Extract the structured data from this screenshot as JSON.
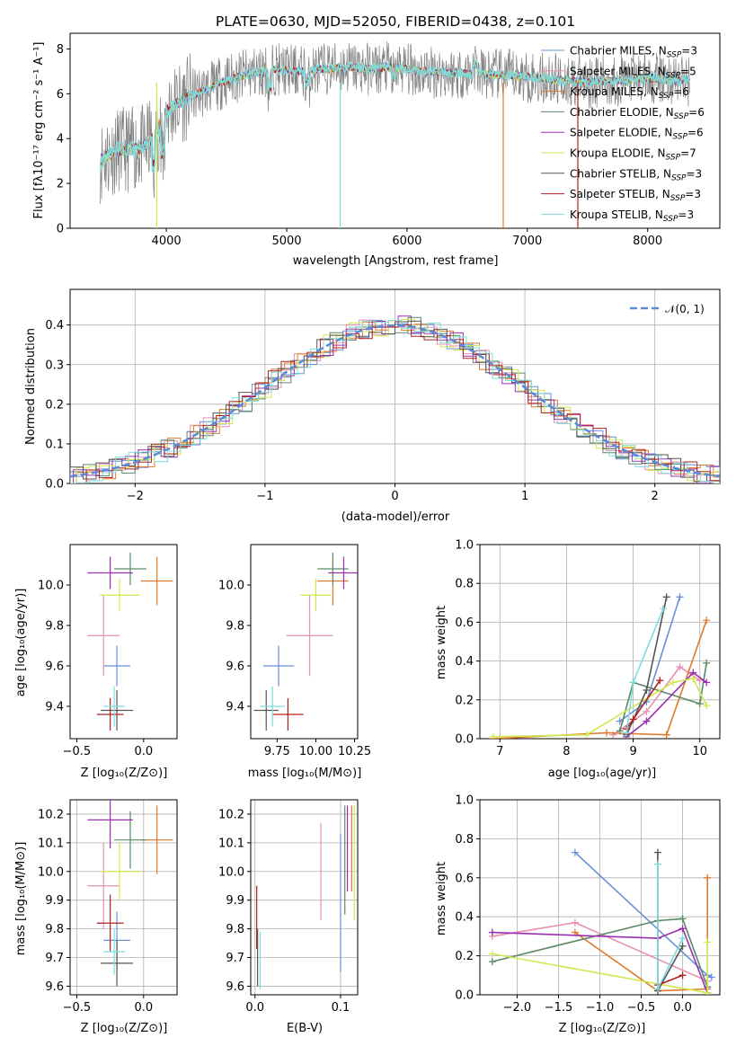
{
  "colors": {
    "chabrier_miles": "#6a8fd8",
    "salpeter_miles": "#e890b0",
    "kroupa_miles": "#e07a2a",
    "chabrier_elodie": "#5a8a68",
    "salpeter_elodie": "#9a30b0",
    "kroupa_elodie": "#d0e850",
    "chabrier_stelib": "#555555",
    "salpeter_stelib": "#b02020",
    "kroupa_stelib": "#80dcdc",
    "gaussian": "#5a8ad8"
  },
  "chart_data": [
    {
      "type": "line",
      "title": "PLATE=0630, MJD=52050, FIBERID=0438, z=0.101",
      "xlabel": "wavelength [Angstrom, rest frame]",
      "ylabel": "Flux [fλ10⁻¹⁷ erg cm⁻² s⁻¹ A⁻¹]",
      "xlim": [
        3200,
        8600
      ],
      "ylim": [
        0,
        8.7
      ],
      "xticks": [
        "4000",
        "5000",
        "6000",
        "7000",
        "8000"
      ],
      "yticks": [
        "0",
        "2",
        "4",
        "6",
        "8"
      ],
      "legend_position": "upper-right",
      "series": [
        {
          "name": "Chabrier MILES, N",
          "sub": "SSP",
          "suffix": "=3",
          "color_key": "chabrier_miles"
        },
        {
          "name": "Salpeter MILES, N",
          "sub": "SSP",
          "suffix": "=5",
          "color_key": "salpeter_miles"
        },
        {
          "name": "Kroupa MILES, N",
          "sub": "SSP",
          "suffix": "=6",
          "color_key": "kroupa_miles"
        },
        {
          "name": "Chabrier ELODIE, N",
          "sub": "SSP",
          "suffix": "=6",
          "color_key": "chabrier_elodie"
        },
        {
          "name": "Salpeter ELODIE, N",
          "sub": "SSP",
          "suffix": "=6",
          "color_key": "salpeter_elodie"
        },
        {
          "name": "Kroupa ELODIE, N",
          "sub": "SSP",
          "suffix": "=7",
          "color_key": "kroupa_elodie"
        },
        {
          "name": "Chabrier STELIB, N",
          "sub": "SSP",
          "suffix": "=3",
          "color_key": "chabrier_stelib"
        },
        {
          "name": "Salpeter STELIB, N",
          "sub": "SSP",
          "suffix": "=3",
          "color_key": "salpeter_stelib"
        },
        {
          "name": "Kroupa STELIB, N",
          "sub": "SSP",
          "suffix": "=3",
          "color_key": "kroupa_stelib"
        }
      ],
      "continuum": [
        [
          3450,
          3.0
        ],
        [
          3500,
          3.2
        ],
        [
          3600,
          3.5
        ],
        [
          3700,
          3.5
        ],
        [
          3800,
          3.6
        ],
        [
          3900,
          4.1
        ],
        [
          4000,
          5.2
        ],
        [
          4100,
          5.6
        ],
        [
          4200,
          5.9
        ],
        [
          4300,
          6.1
        ],
        [
          4500,
          6.6
        ],
        [
          4700,
          6.9
        ],
        [
          4900,
          7.1
        ],
        [
          5100,
          7.0
        ],
        [
          5300,
          7.1
        ],
        [
          5500,
          7.2
        ],
        [
          5700,
          7.1
        ],
        [
          5900,
          7.2
        ],
        [
          6100,
          7.0
        ],
        [
          6300,
          6.95
        ],
        [
          6500,
          6.9
        ],
        [
          6700,
          6.85
        ],
        [
          6900,
          6.8
        ],
        [
          7100,
          6.7
        ],
        [
          7300,
          6.6
        ],
        [
          7500,
          6.55
        ],
        [
          7800,
          6.6
        ],
        [
          8000,
          6.7
        ],
        [
          8300,
          6.6
        ]
      ]
    },
    {
      "type": "histogram",
      "xlabel": "(data-model)/error",
      "ylabel": "Normed distribution",
      "xlim": [
        -2.5,
        2.5
      ],
      "ylim": [
        0,
        0.49
      ],
      "xticks": [
        "−2",
        "−1",
        "0",
        "1",
        "2"
      ],
      "yticks": [
        "0.0",
        "0.1",
        "0.2",
        "0.3",
        "0.4"
      ],
      "grid": true,
      "legend_position": "upper-right",
      "gaussian_label": "𝒩(0, 1)",
      "bin_width": 0.1
    },
    {
      "type": "scatter",
      "xlabel": "Z [log₁₀(Z/Z⊙)]",
      "ylabel": "age  [log₁₀(age/yr)]",
      "xlim": [
        -0.55,
        0.25
      ],
      "ylim": [
        9.24,
        10.2
      ],
      "xticks": [
        "−0.5",
        "0.0"
      ],
      "yticks": [
        "9.4",
        "9.6",
        "9.8",
        "10.0"
      ],
      "points": [
        {
          "c": "chabrier_miles",
          "x": -0.2,
          "y": 9.6,
          "ex": 0.1,
          "ey": 0.1
        },
        {
          "c": "salpeter_miles",
          "x": -0.3,
          "y": 9.75,
          "ex": 0.12,
          "ey": 0.2
        },
        {
          "c": "kroupa_miles",
          "x": 0.1,
          "y": 10.02,
          "ex": 0.12,
          "ey": 0.12
        },
        {
          "c": "chabrier_elodie",
          "x": -0.1,
          "y": 10.08,
          "ex": 0.12,
          "ey": 0.08
        },
        {
          "c": "salpeter_elodie",
          "x": -0.25,
          "y": 10.06,
          "ex": 0.17,
          "ey": 0.08
        },
        {
          "c": "kroupa_elodie",
          "x": -0.18,
          "y": 9.95,
          "ex": 0.15,
          "ey": 0.08
        },
        {
          "c": "chabrier_stelib",
          "x": -0.2,
          "y": 9.38,
          "ex": 0.12,
          "ey": 0.1
        },
        {
          "c": "salpeter_stelib",
          "x": -0.25,
          "y": 9.36,
          "ex": 0.1,
          "ey": 0.08
        },
        {
          "c": "kroupa_stelib",
          "x": -0.22,
          "y": 9.4,
          "ex": 0.08,
          "ey": 0.1
        }
      ]
    },
    {
      "type": "scatter",
      "xlabel": "mass [log₁₀(M/M⊙)]",
      "xlim": [
        9.58,
        10.27
      ],
      "ylim": [
        9.24,
        10.2
      ],
      "xticks": [
        "9.75",
        "10.00",
        "10.25"
      ],
      "yticks": [
        "9.4",
        "9.6",
        "9.8",
        "10.0"
      ],
      "points": [
        {
          "c": "chabrier_miles",
          "x": 9.76,
          "y": 9.6,
          "ex": 0.1,
          "ey": 0.1
        },
        {
          "c": "salpeter_miles",
          "x": 9.96,
          "y": 9.75,
          "ex": 0.15,
          "ey": 0.2
        },
        {
          "c": "kroupa_miles",
          "x": 10.11,
          "y": 10.02,
          "ex": 0.1,
          "ey": 0.12
        },
        {
          "c": "chabrier_elodie",
          "x": 10.11,
          "y": 10.08,
          "ex": 0.1,
          "ey": 0.08
        },
        {
          "c": "salpeter_elodie",
          "x": 10.18,
          "y": 10.06,
          "ex": 0.1,
          "ey": 0.08
        },
        {
          "c": "kroupa_elodie",
          "x": 10.0,
          "y": 9.95,
          "ex": 0.1,
          "ey": 0.08
        },
        {
          "c": "chabrier_stelib",
          "x": 9.68,
          "y": 9.38,
          "ex": 0.08,
          "ey": 0.1
        },
        {
          "c": "salpeter_stelib",
          "x": 9.82,
          "y": 9.36,
          "ex": 0.1,
          "ey": 0.08
        },
        {
          "c": "kroupa_stelib",
          "x": 9.72,
          "y": 9.4,
          "ex": 0.08,
          "ey": 0.1
        }
      ]
    },
    {
      "type": "line",
      "xlabel": "age  [log₁₀(age/yr)]",
      "ylabel": "mass weight",
      "xlim": [
        6.7,
        10.3
      ],
      "ylim": [
        0,
        1.0
      ],
      "xticks": [
        "7",
        "8",
        "9",
        "10"
      ],
      "yticks": [
        "0.0",
        "0.2",
        "0.4",
        "0.6",
        "0.8",
        "1.0"
      ],
      "grid": true,
      "series": [
        {
          "c": "chabrier_miles",
          "x": [
            8.8,
            9.2,
            9.7
          ],
          "y": [
            0.09,
            0.19,
            0.73
          ]
        },
        {
          "c": "salpeter_miles",
          "x": [
            8.7,
            9.2,
            9.7,
            10.0
          ],
          "y": [
            0.02,
            0.14,
            0.37,
            0.3
          ]
        },
        {
          "c": "kroupa_miles",
          "x": [
            6.9,
            8.6,
            9.5,
            10.1
          ],
          "y": [
            0.0,
            0.03,
            0.02,
            0.61
          ]
        },
        {
          "c": "chabrier_elodie",
          "x": [
            8.8,
            9.0,
            10.0,
            10.1
          ],
          "y": [
            0.04,
            0.29,
            0.18,
            0.39
          ]
        },
        {
          "c": "salpeter_elodie",
          "x": [
            8.9,
            9.2,
            9.9,
            10.1
          ],
          "y": [
            0.01,
            0.09,
            0.34,
            0.29
          ]
        },
        {
          "c": "kroupa_elodie",
          "x": [
            6.9,
            8.3,
            9.6,
            9.9,
            10.1
          ],
          "y": [
            0.01,
            0.02,
            0.29,
            0.31,
            0.17
          ]
        },
        {
          "c": "chabrier_stelib",
          "x": [
            8.9,
            9.2,
            9.5
          ],
          "y": [
            0.02,
            0.25,
            0.73
          ]
        },
        {
          "c": "salpeter_stelib",
          "x": [
            8.9,
            9.0,
            9.4
          ],
          "y": [
            0.05,
            0.1,
            0.3
          ]
        },
        {
          "c": "kroupa_stelib",
          "x": [
            8.9,
            9.0,
            9.45
          ],
          "y": [
            0.03,
            0.29,
            0.67
          ]
        }
      ]
    },
    {
      "type": "scatter",
      "xlabel": "Z [log₁₀(Z/Z⊙)]",
      "ylabel": "mass [log₁₀(M/M⊙)]",
      "xlim": [
        -0.55,
        0.25
      ],
      "ylim": [
        9.57,
        10.25
      ],
      "xticks": [
        "−0.5",
        "0.0"
      ],
      "yticks": [
        "9.6",
        "9.7",
        "9.8",
        "9.9",
        "10.0",
        "10.1",
        "10.2"
      ],
      "grid": true,
      "points": [
        {
          "c": "chabrier_miles",
          "x": -0.2,
          "y": 9.76,
          "ex": 0.1,
          "ey": 0.1
        },
        {
          "c": "salpeter_miles",
          "x": -0.3,
          "y": 9.95,
          "ex": 0.12,
          "ey": 0.15
        },
        {
          "c": "kroupa_miles",
          "x": 0.1,
          "y": 10.11,
          "ex": 0.12,
          "ey": 0.12
        },
        {
          "c": "chabrier_elodie",
          "x": -0.1,
          "y": 10.11,
          "ex": 0.12,
          "ey": 0.1
        },
        {
          "c": "salpeter_elodie",
          "x": -0.25,
          "y": 10.18,
          "ex": 0.17,
          "ey": 0.1
        },
        {
          "c": "kroupa_elodie",
          "x": -0.18,
          "y": 10.0,
          "ex": 0.15,
          "ey": 0.1
        },
        {
          "c": "chabrier_stelib",
          "x": -0.2,
          "y": 9.68,
          "ex": 0.12,
          "ey": 0.08
        },
        {
          "c": "salpeter_stelib",
          "x": -0.25,
          "y": 9.82,
          "ex": 0.1,
          "ey": 0.1
        },
        {
          "c": "kroupa_stelib",
          "x": -0.22,
          "y": 9.72,
          "ex": 0.08,
          "ey": 0.08
        }
      ]
    },
    {
      "type": "scatter",
      "xlabel": "E(B-V)",
      "xlim": [
        -0.005,
        0.12
      ],
      "ylim": [
        9.57,
        10.25
      ],
      "xticks": [
        "0.0",
        "0.1"
      ],
      "yticks": [
        "9.6",
        "9.7",
        "9.8",
        "9.9",
        "10.0",
        "10.1",
        "10.2"
      ],
      "grid": true,
      "points": [
        {
          "c": "chabrier_miles",
          "x": 0.1,
          "y": 9.89,
          "ex": 0,
          "ey": 0.24
        },
        {
          "c": "salpeter_miles",
          "x": 0.077,
          "y": 10.0,
          "ex": 0,
          "ey": 0.17
        },
        {
          "c": "kroupa_miles",
          "x": 0.113,
          "y": 10.08,
          "ex": 0,
          "ey": 0.15
        },
        {
          "c": "chabrier_elodie",
          "x": 0.105,
          "y": 10.04,
          "ex": 0,
          "ey": 0.19
        },
        {
          "c": "salpeter_elodie",
          "x": 0.108,
          "y": 10.08,
          "ex": 0,
          "ey": 0.15
        },
        {
          "c": "kroupa_elodie",
          "x": 0.116,
          "y": 10.03,
          "ex": 0,
          "ey": 0.2
        },
        {
          "c": "chabrier_stelib",
          "x": 0.003,
          "y": 9.7,
          "ex": 0,
          "ey": 0.1
        },
        {
          "c": "salpeter_stelib",
          "x": 0.002,
          "y": 9.84,
          "ex": 0,
          "ey": 0.11
        },
        {
          "c": "kroupa_stelib",
          "x": 0.006,
          "y": 9.69,
          "ex": 0,
          "ey": 0.1
        }
      ]
    },
    {
      "type": "line",
      "xlabel": "Z [log₁₀(Z/Z⊙)]",
      "ylabel": "mass weight",
      "xlim": [
        -2.45,
        0.45
      ],
      "ylim": [
        0,
        1.0
      ],
      "xticks": [
        "−2.0",
        "−1.5",
        "−1.0",
        "−0.5",
        "0.0"
      ],
      "yticks": [
        "0.0",
        "0.2",
        "0.4",
        "0.6",
        "0.8",
        "1.0"
      ],
      "grid": true,
      "series": [
        {
          "c": "chabrier_miles",
          "x": [
            -1.3,
            0.3,
            0.35
          ],
          "y": [
            0.73,
            0.1,
            0.09
          ]
        },
        {
          "c": "salpeter_miles",
          "x": [
            -2.3,
            -1.3,
            0.3
          ],
          "y": [
            0.3,
            0.37,
            0.07
          ]
        },
        {
          "c": "kroupa_miles",
          "x": [
            -1.3,
            -0.3,
            0.3,
            0.3
          ],
          "y": [
            0.32,
            0.02,
            0.03,
            0.6
          ]
        },
        {
          "c": "chabrier_elodie",
          "x": [
            -2.3,
            -0.3,
            0.0,
            0.3
          ],
          "y": [
            0.17,
            0.38,
            0.39,
            0.04
          ]
        },
        {
          "c": "salpeter_elodie",
          "x": [
            -2.3,
            -0.3,
            0.0,
            0.3
          ],
          "y": [
            0.32,
            0.29,
            0.34,
            0.01
          ]
        },
        {
          "c": "kroupa_elodie",
          "x": [
            -2.3,
            0.3,
            0.3
          ],
          "y": [
            0.21,
            0.01,
            0.27
          ]
        },
        {
          "c": "chabrier_stelib",
          "x": [
            -0.3,
            -0.3,
            0.0
          ],
          "y": [
            0.73,
            0.02,
            0.25
          ]
        },
        {
          "c": "salpeter_stelib",
          "x": [
            -0.3,
            0.0
          ],
          "y": [
            0.05,
            0.1
          ]
        },
        {
          "c": "kroupa_stelib",
          "x": [
            -0.3,
            -0.3,
            0.0
          ],
          "y": [
            0.67,
            0.03,
            0.29
          ]
        }
      ]
    }
  ]
}
